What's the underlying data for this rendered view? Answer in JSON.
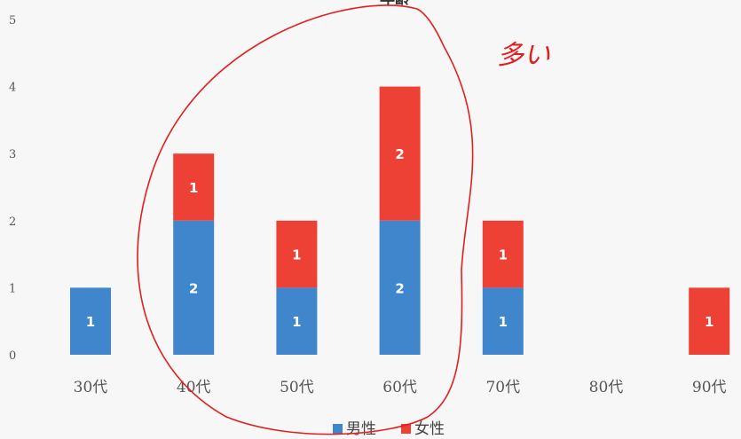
{
  "chart_data": {
    "type": "bar",
    "stacked": true,
    "title": "年齢",
    "categories": [
      "30代",
      "40代",
      "50代",
      "60代",
      "70代",
      "80代",
      "90代"
    ],
    "series": [
      {
        "name": "男性",
        "color": "#3f86cc",
        "values": [
          1,
          2,
          1,
          2,
          1,
          0,
          0
        ]
      },
      {
        "name": "女性",
        "color": "#ee4136",
        "values": [
          0,
          1,
          1,
          2,
          1,
          0,
          1
        ]
      }
    ],
    "ylim": [
      0,
      5
    ],
    "yticks": [
      "0",
      "1",
      "2",
      "3",
      "4",
      "5"
    ],
    "grid": false,
    "legend": "bottom",
    "annotation": {
      "text": "多い",
      "color": "#e02020",
      "circled_categories": [
        "40代",
        "50代",
        "60代"
      ]
    }
  }
}
